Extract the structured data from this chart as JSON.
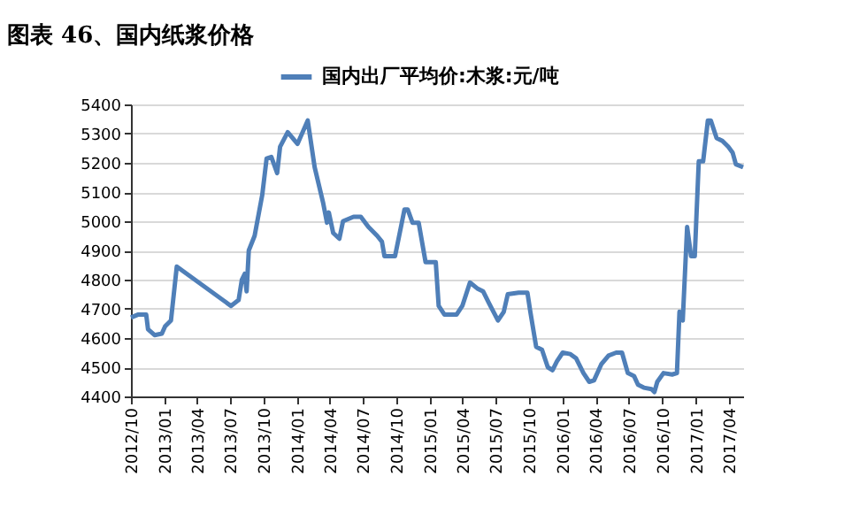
{
  "chart_data": {
    "type": "line",
    "title": "图表 46、国内纸浆价格",
    "legend": "top",
    "grid": "y",
    "xlim": [
      "2012-10-01",
      "2017-05-11"
    ],
    "xticks": [
      {
        "value": "2012-10",
        "label": "2012/10"
      },
      {
        "value": "2013-01",
        "label": "2013/01"
      },
      {
        "value": "2013-04",
        "label": "2013/04"
      },
      {
        "value": "2013-07",
        "label": "2013/07"
      },
      {
        "value": "2013-10",
        "label": "2013/10"
      },
      {
        "value": "2014-01",
        "label": "2014/01"
      },
      {
        "value": "2014-04",
        "label": "2014/04"
      },
      {
        "value": "2014-07",
        "label": "2014/07"
      },
      {
        "value": "2014-10",
        "label": "2014/10"
      },
      {
        "value": "2015-01",
        "label": "2015/01"
      },
      {
        "value": "2015-04",
        "label": "2015/04"
      },
      {
        "value": "2015-07",
        "label": "2015/07"
      },
      {
        "value": "2015-10",
        "label": "2015/10"
      },
      {
        "value": "2016-01",
        "label": "2016/01"
      },
      {
        "value": "2016-04",
        "label": "2016/04"
      },
      {
        "value": "2016-07",
        "label": "2016/07"
      },
      {
        "value": "2016-10",
        "label": "2016/10"
      },
      {
        "value": "2017-01",
        "label": "2017/01"
      },
      {
        "value": "2017-04",
        "label": "2017/04"
      }
    ],
    "ylim": [
      4400,
      5400
    ],
    "yticks": [
      4400,
      4500,
      4600,
      4700,
      4800,
      4900,
      5000,
      5100,
      5200,
      5300,
      5400
    ],
    "series": [
      {
        "name": "国内出厂平均价:木浆:元/吨",
        "color": "#4f7fb8",
        "x": [
          "2012-10-01",
          "2012-10-20",
          "2012-11-12",
          "2012-11-17",
          "2012-12-05",
          "2012-12-25",
          "2013-01-03",
          "2013-01-19",
          "2013-02-04",
          "2013-07-03",
          "2013-07-24",
          "2013-08-02",
          "2013-08-10",
          "2013-08-15",
          "2013-08-21",
          "2013-09-06",
          "2013-09-27",
          "2013-10-09",
          "2013-10-22",
          "2013-11-07",
          "2013-11-15",
          "2013-12-06",
          "2014-01-02",
          "2014-01-30",
          "2014-02-18",
          "2014-03-13",
          "2014-03-24",
          "2014-03-29",
          "2014-04-10",
          "2014-04-27",
          "2014-05-07",
          "2014-06-05",
          "2014-06-25",
          "2014-07-16",
          "2014-08-09",
          "2014-08-22",
          "2014-08-29",
          "2014-09-27",
          "2014-10-23",
          "2014-11-01",
          "2014-11-14",
          "2014-12-01",
          "2014-12-20",
          "2015-01-17",
          "2015-01-25",
          "2015-02-10",
          "2015-03-15",
          "2015-03-31",
          "2015-04-21",
          "2015-05-11",
          "2015-05-27",
          "2015-06-12",
          "2015-07-07",
          "2015-07-23",
          "2015-08-03",
          "2015-09-02",
          "2015-09-26",
          "2015-10-04",
          "2015-10-20",
          "2015-11-05",
          "2015-11-21",
          "2015-12-04",
          "2015-12-16",
          "2016-01-01",
          "2016-01-22",
          "2016-02-07",
          "2016-02-27",
          "2016-03-14",
          "2016-03-27",
          "2016-04-16",
          "2016-05-06",
          "2016-05-27",
          "2016-06-12",
          "2016-06-28",
          "2016-07-15",
          "2016-07-26",
          "2016-08-11",
          "2016-09-01",
          "2016-09-09",
          "2016-09-17",
          "2016-10-04",
          "2016-10-28",
          "2016-11-10",
          "2016-11-17",
          "2016-11-26",
          "2016-12-08",
          "2016-12-19",
          "2016-12-29",
          "2017-01-09",
          "2017-01-21",
          "2017-02-03",
          "2017-02-11",
          "2017-02-27",
          "2017-03-15",
          "2017-03-31",
          "2017-04-12",
          "2017-04-21",
          "2017-05-11"
        ],
        "values": [
          4670,
          4680,
          4680,
          4630,
          4610,
          4615,
          4640,
          4660,
          4845,
          4710,
          4730,
          4800,
          4820,
          4760,
          4900,
          4950,
          5090,
          5215,
          5220,
          5165,
          5255,
          5305,
          5265,
          5345,
          5185,
          5065,
          4995,
          5030,
          4960,
          4940,
          5000,
          5015,
          5015,
          4980,
          4950,
          4930,
          4880,
          4880,
          5040,
          5040,
          4995,
          4995,
          4860,
          4860,
          4710,
          4680,
          4680,
          4710,
          4790,
          4770,
          4760,
          4720,
          4660,
          4690,
          4750,
          4755,
          4755,
          4690,
          4570,
          4560,
          4500,
          4490,
          4520,
          4550,
          4545,
          4530,
          4480,
          4450,
          4455,
          4510,
          4540,
          4550,
          4550,
          4480,
          4470,
          4440,
          4430,
          4425,
          4415,
          4450,
          4480,
          4475,
          4480,
          4690,
          4660,
          4980,
          4880,
          4880,
          5205,
          5205,
          5345,
          5345,
          5285,
          5275,
          5255,
          5235,
          5195,
          5185
        ]
      }
    ]
  }
}
